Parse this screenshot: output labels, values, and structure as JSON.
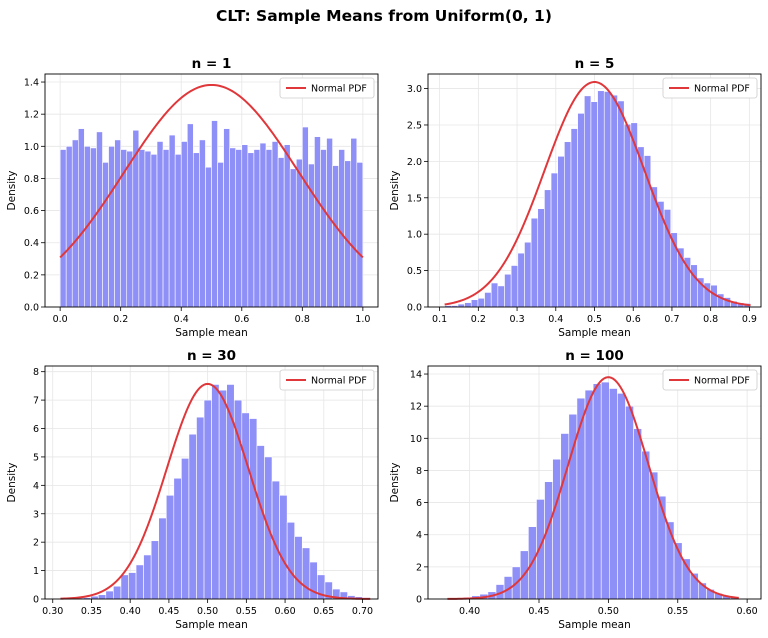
{
  "figure_title": "CLT: Sample Means from Uniform(0, 1)",
  "colors": {
    "bar_fill": "#8f8ff8",
    "bar_edge": "#ffffff",
    "pdf_line": "#e0373a",
    "grid": "#e6e6e6"
  },
  "chart_data": [
    {
      "type": "bar",
      "title": "n = 1",
      "xlabel": "Sample mean",
      "ylabel": "Density",
      "xlim": [
        -0.05,
        1.05
      ],
      "ylim": [
        0,
        1.45
      ],
      "xticks": [
        "0.0",
        "0.2",
        "0.4",
        "0.6",
        "0.8",
        "1.0"
      ],
      "xtick_values": [
        0.0,
        0.2,
        0.4,
        0.6,
        0.8,
        1.0
      ],
      "yticks": [
        "0.0",
        "0.2",
        "0.4",
        "0.6",
        "0.8",
        "1.0",
        "1.2",
        "1.4"
      ],
      "ytick_values": [
        0.0,
        0.2,
        0.4,
        0.6,
        0.8,
        1.0,
        1.2,
        1.4
      ],
      "legend": "top-right",
      "grid": true,
      "hist": {
        "start": 0.0,
        "end": 1.0,
        "values": [
          0.98,
          1.0,
          1.04,
          1.11,
          1.0,
          0.99,
          1.09,
          0.9,
          1.0,
          1.04,
          0.98,
          0.97,
          1.1,
          0.98,
          0.97,
          0.95,
          1.03,
          0.98,
          1.07,
          0.95,
          1.03,
          1.14,
          0.96,
          1.04,
          0.87,
          1.16,
          0.9,
          1.11,
          0.99,
          0.98,
          1.01,
          0.96,
          0.98,
          1.02,
          0.98,
          1.03,
          0.93,
          1.01,
          0.86,
          0.92,
          1.12,
          0.89,
          1.06,
          0.98,
          1.05,
          0.88,
          0.98,
          0.91,
          1.05,
          0.9
        ]
      },
      "series": [
        {
          "name": "Normal PDF",
          "mean": 0.5,
          "sd": 0.2887,
          "x_range": [
            0.0,
            1.0
          ]
        }
      ]
    },
    {
      "type": "bar",
      "title": "n = 5",
      "xlabel": "Sample mean",
      "ylabel": "Density",
      "xlim": [
        0.07,
        0.93
      ],
      "ylim": [
        0,
        3.2
      ],
      "xticks": [
        "0.1",
        "0.2",
        "0.3",
        "0.4",
        "0.5",
        "0.6",
        "0.7",
        "0.8",
        "0.9"
      ],
      "xtick_values": [
        0.1,
        0.2,
        0.3,
        0.4,
        0.5,
        0.6,
        0.7,
        0.8,
        0.9
      ],
      "yticks": [
        "0.0",
        "0.5",
        "1.0",
        "1.5",
        "2.0",
        "2.5",
        "3.0"
      ],
      "ytick_values": [
        0.0,
        0.5,
        1.0,
        1.5,
        2.0,
        2.5,
        3.0
      ],
      "legend": "top-right",
      "grid": true,
      "hist": {
        "start": 0.113,
        "end": 0.903,
        "values": [
          0.02,
          0.02,
          0.04,
          0.06,
          0.1,
          0.12,
          0.2,
          0.33,
          0.29,
          0.45,
          0.57,
          0.74,
          0.89,
          1.22,
          1.35,
          1.61,
          1.84,
          2.07,
          2.27,
          2.45,
          2.66,
          2.9,
          2.82,
          2.97,
          2.96,
          2.91,
          2.83,
          2.51,
          2.53,
          2.2,
          2.08,
          1.65,
          1.45,
          1.34,
          1.02,
          0.81,
          0.68,
          0.58,
          0.4,
          0.33,
          0.3,
          0.18,
          0.13,
          0.08,
          0.06,
          0.05
        ]
      },
      "series": [
        {
          "name": "Normal PDF",
          "mean": 0.5,
          "sd": 0.1291,
          "x_range": [
            0.113,
            0.903
          ]
        }
      ]
    },
    {
      "type": "bar",
      "title": "n = 30",
      "xlabel": "Sample mean",
      "ylabel": "Density",
      "xlim": [
        0.29,
        0.72
      ],
      "ylim": [
        0,
        8.2
      ],
      "xticks": [
        "0.30",
        "0.35",
        "0.40",
        "0.45",
        "0.50",
        "0.55",
        "0.60",
        "0.65",
        "0.70"
      ],
      "xtick_values": [
        0.3,
        0.35,
        0.4,
        0.45,
        0.5,
        0.55,
        0.6,
        0.65,
        0.7
      ],
      "yticks": [
        "0",
        "1",
        "2",
        "3",
        "4",
        "5",
        "6",
        "7",
        "8"
      ],
      "ytick_values": [
        0,
        1,
        2,
        3,
        4,
        5,
        6,
        7,
        8
      ],
      "legend": "top-right",
      "grid": true,
      "hist": {
        "start": 0.31,
        "end": 0.71,
        "values": [
          0.02,
          0.02,
          0.04,
          0.05,
          0.1,
          0.15,
          0.28,
          0.45,
          0.85,
          0.93,
          1.2,
          1.55,
          2.05,
          2.85,
          3.65,
          4.25,
          4.95,
          5.8,
          6.4,
          7.0,
          7.55,
          7.35,
          7.55,
          7.0,
          6.55,
          6.35,
          5.4,
          5.0,
          4.15,
          3.65,
          2.7,
          2.2,
          1.8,
          1.3,
          0.85,
          0.6,
          0.35,
          0.25,
          0.12,
          0.08,
          0.05
        ]
      },
      "series": [
        {
          "name": "Normal PDF",
          "mean": 0.5,
          "sd": 0.0527,
          "x_range": [
            0.31,
            0.71
          ]
        }
      ]
    },
    {
      "type": "bar",
      "title": "n = 100",
      "xlabel": "Sample mean",
      "ylabel": "Density",
      "xlim": [
        0.37,
        0.61
      ],
      "ylim": [
        0,
        14.5
      ],
      "xticks": [
        "0.40",
        "0.45",
        "0.50",
        "0.55",
        "0.60"
      ],
      "xtick_values": [
        0.4,
        0.45,
        0.5,
        0.55,
        0.6
      ],
      "yticks": [
        "0",
        "2",
        "4",
        "6",
        "8",
        "10",
        "12",
        "14"
      ],
      "ytick_values": [
        0,
        2,
        4,
        6,
        8,
        10,
        12,
        14
      ],
      "legend": "top-right",
      "grid": true,
      "hist": {
        "start": 0.384,
        "end": 0.594,
        "values": [
          0.05,
          0.06,
          0.1,
          0.2,
          0.3,
          0.45,
          0.9,
          1.4,
          2.0,
          3.0,
          4.5,
          6.2,
          7.3,
          8.7,
          10.3,
          11.5,
          12.5,
          13.0,
          13.4,
          13.5,
          13.1,
          12.8,
          12.0,
          10.6,
          9.2,
          7.9,
          6.4,
          4.8,
          3.5,
          2.5,
          1.6,
          1.0,
          0.6,
          0.35,
          0.2,
          0.1
        ]
      },
      "series": [
        {
          "name": "Normal PDF",
          "mean": 0.5,
          "sd": 0.0289,
          "x_range": [
            0.384,
            0.594
          ]
        }
      ]
    }
  ]
}
